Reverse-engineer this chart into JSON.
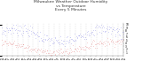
{
  "title": "Milwaukee Weather Outdoor Humidity\nvs Temperature\nEvery 5 Minutes",
  "title_fontsize": 3.2,
  "blue_color": "#0000CC",
  "red_color": "#CC0000",
  "bg_color": "#FFFFFF",
  "plot_bg": "#FFFFFF",
  "grid_color": "#CCCCCC",
  "ylim": [
    0,
    105
  ],
  "right_ytick_vals": [
    10,
    20,
    30,
    40,
    50,
    60,
    70,
    80,
    90,
    100
  ],
  "right_ytick_labels": [
    "1",
    "2",
    "3",
    "4",
    "5",
    "6",
    "7",
    "8",
    "9",
    "10"
  ],
  "num_points": 200,
  "seed": 7
}
